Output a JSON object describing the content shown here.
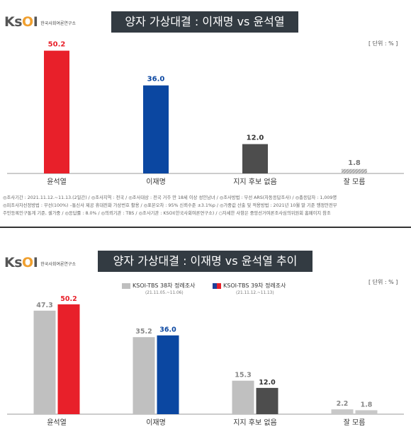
{
  "logo": {
    "brand": "KSOI",
    "subtitle": "한국사회여론연구소"
  },
  "chart1": {
    "title": "양자 가상대결 : 이재명 vs 윤석열",
    "unit": "[ 단위 : % ]",
    "notes_line1": "◎조사기간 : 2021.11.12.~11.13.(2일간)  / ◎조사지역 : 전국  / ◎조사대상 : 전국 거주 만 18세 이상 성인남녀  / ◎조사방법 : 무선 ARS(자동응답조사)  / ◎총응답자 : 1,009명",
    "notes_line2": "◎피조사자선정방법 : 무선(100%) –통신사 제공 휴대전화 가상번호 활용  / ◎표본오차 : 95% 신뢰수준 ±3.1%p  / ◎가중값 산출 및 적용방법 : 2021년 10월 말 기준 행정안전부",
    "notes_line3": "주민등록인구통계 기준, 셀가중  / ◎응답률 : 8.0%  / ◎의뢰기관 : TBS  / ◎조사기관 : KSOI(한국사회여론연구소)  / ○자세한 사항은 중앙선거여론조사심의위원회 홈페이지 참조"
  },
  "chart2": {
    "title": "양자 가상대결 : 이재명 vs 윤석열 추이",
    "unit": "[ 단위 : % ]",
    "legend": [
      {
        "label": "KSOI-TBS 38차 정례조사",
        "sub": "(21.11.05.~11.06)",
        "color": "#bfbfbf"
      },
      {
        "label": "KSOI-TBS 39차 정례조사",
        "sub": "(21.11.12.~11.13)",
        "color": "#1f3f99"
      }
    ]
  },
  "chart_data": [
    {
      "type": "bar",
      "title": "양자 가상대결 : 이재명 vs 윤석열",
      "categories": [
        "윤석열",
        "이재명",
        "지지 후보 없음",
        "잘 모름"
      ],
      "values": [
        50.2,
        36.0,
        12.0,
        1.8
      ],
      "value_labels": [
        "50.2",
        "36.0",
        "12.0",
        "1.8"
      ],
      "colors": [
        "#e8202a",
        "#0b47a1",
        "#4d4d4d",
        "#9e9e9e"
      ],
      "label_colors": [
        "#e8202a",
        "#0b47a1",
        "#333333",
        "#777777"
      ],
      "ylim": [
        0,
        55
      ]
    },
    {
      "type": "bar",
      "title": "양자 가상대결 : 이재명 vs 윤석열 추이",
      "categories": [
        "윤석열",
        "이재명",
        "지지 후보 없음",
        "잘 모름"
      ],
      "series": [
        {
          "name": "KSOI-TBS 38차 정례조사",
          "values": [
            47.3,
            35.2,
            15.3,
            2.2
          ],
          "value_labels": [
            "47.3",
            "35.2",
            "15.3",
            "2.2"
          ],
          "colors": [
            "#c0c0c0",
            "#c0c0c0",
            "#c0c0c0",
            "#c8c8c8"
          ],
          "label_color": "#888888"
        },
        {
          "name": "KSOI-TBS 39차 정례조사",
          "values": [
            50.2,
            36.0,
            12.0,
            1.8
          ],
          "value_labels": [
            "50.2",
            "36.0",
            "12.0",
            "1.8"
          ],
          "colors": [
            "#e8202a",
            "#0b47a1",
            "#4d4d4d",
            "#c8c8c8"
          ],
          "label_colors": [
            "#e8202a",
            "#0b47a1",
            "#333333",
            "#888888"
          ]
        }
      ],
      "ylim": [
        0,
        55
      ]
    }
  ]
}
